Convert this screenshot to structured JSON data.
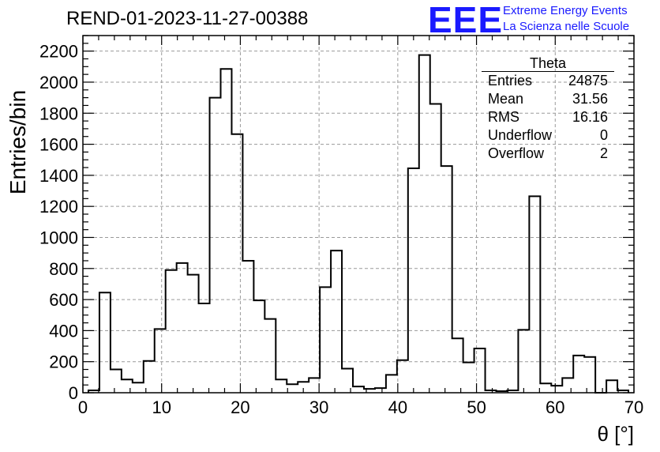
{
  "title": "REND-01-2023-11-27-00388",
  "logo": {
    "mark": "EEE",
    "line1": "Extreme Energy Events",
    "line2": "La Scienza nelle Scuole",
    "color": "#1a1aff"
  },
  "stats_box": {
    "title": "Theta",
    "rows": [
      {
        "label": "Entries",
        "value": "24875"
      },
      {
        "label": "Mean",
        "value": "31.56"
      },
      {
        "label": "RMS",
        "value": "16.16"
      },
      {
        "label": "Underflow",
        "value": "0"
      },
      {
        "label": "Overflow",
        "value": "2"
      }
    ]
  },
  "chart_data": {
    "type": "bar",
    "style": "step-histogram",
    "title": "REND-01-2023-11-27-00388",
    "xlabel": "θ [°]",
    "ylabel": "Entries/bin",
    "xlim": [
      0,
      70
    ],
    "ylim": [
      0,
      2300
    ],
    "grid": true,
    "x_ticks": [
      0,
      10,
      20,
      30,
      40,
      50,
      60,
      70
    ],
    "y_ticks": [
      0,
      200,
      400,
      600,
      800,
      1000,
      1200,
      1400,
      1600,
      1800,
      2000,
      2200
    ],
    "bin_width": 1.4,
    "bin_edges_start": 0.7,
    "values": [
      15,
      645,
      150,
      85,
      65,
      205,
      410,
      790,
      835,
      760,
      575,
      1900,
      2085,
      1665,
      850,
      595,
      475,
      85,
      55,
      70,
      95,
      680,
      915,
      155,
      40,
      25,
      30,
      115,
      210,
      1445,
      2175,
      1860,
      1460,
      350,
      195,
      285,
      15,
      10,
      15,
      405,
      1265,
      60,
      45,
      95,
      240,
      230,
      0,
      80,
      15
    ]
  }
}
